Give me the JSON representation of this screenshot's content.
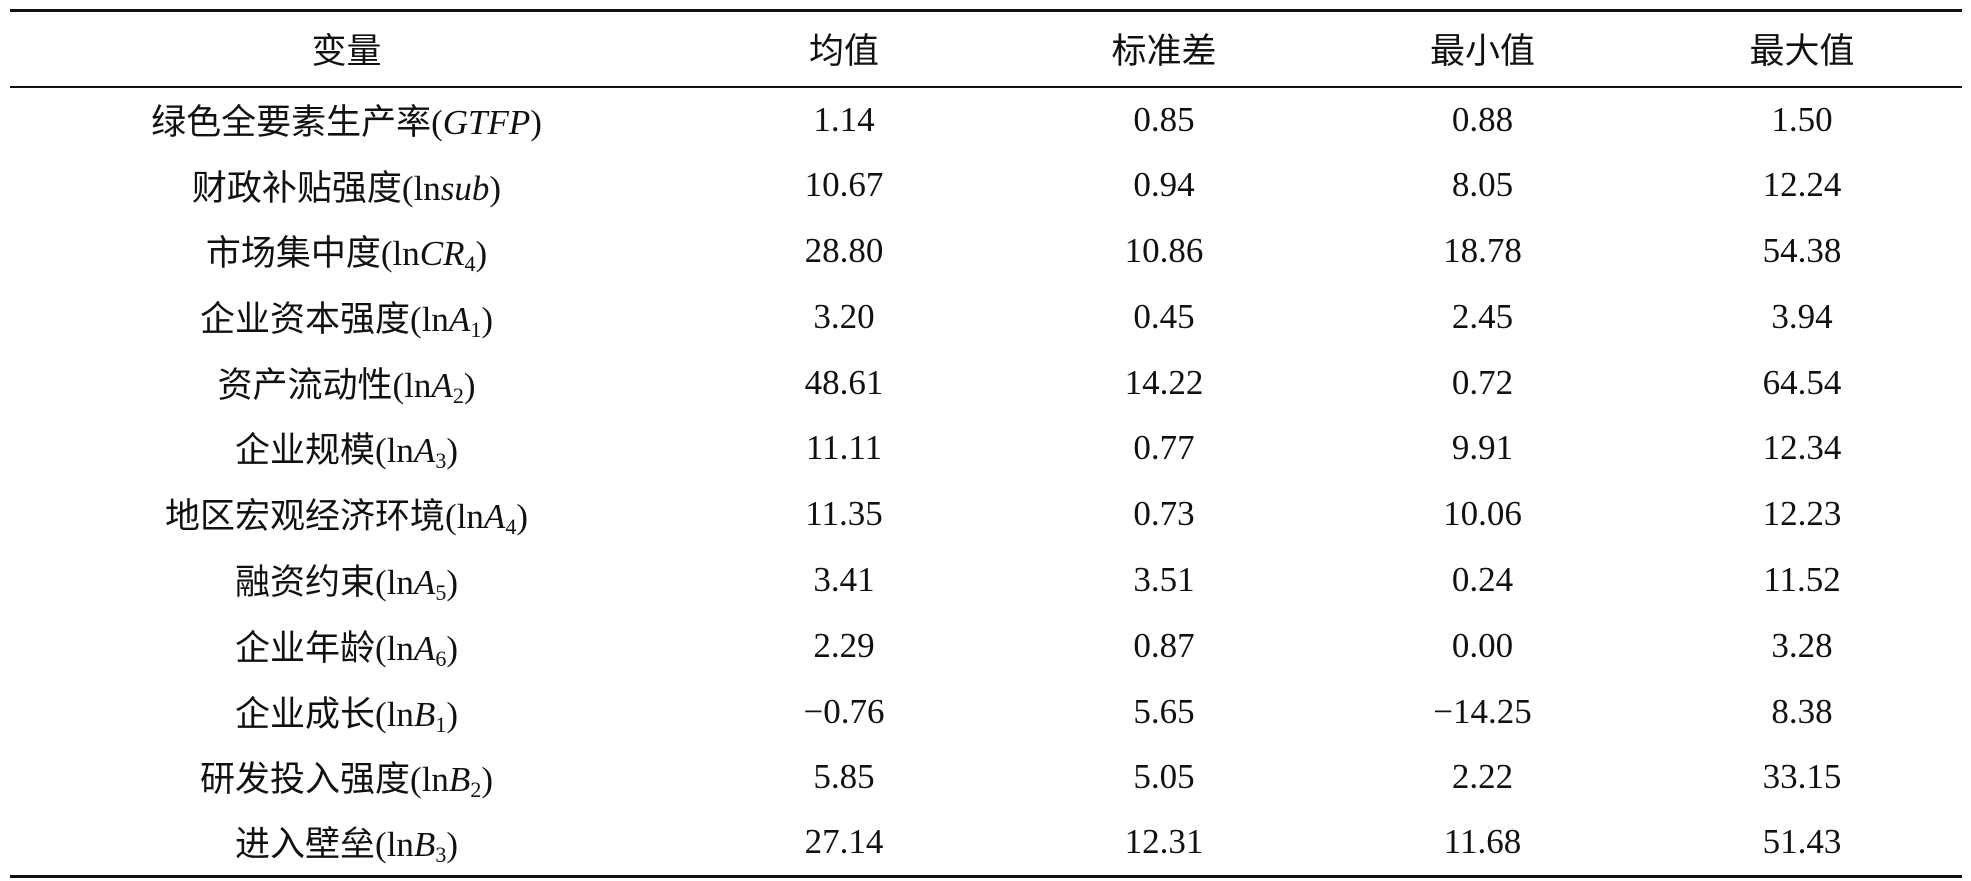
{
  "table": {
    "header": [
      "变量",
      "均值",
      "标准差",
      "最小值",
      "最大值"
    ],
    "rows": [
      [
        {
          "name": "绿色全要素生产率(",
          "symbol": "GTFP",
          "close": ")"
        },
        "1.14",
        "0.85",
        "0.88",
        "1.50"
      ],
      [
        {
          "name": "财政补贴强度(",
          "prefix": "ln",
          "symbol": "sub",
          "close": ")"
        },
        "10.67",
        "0.94",
        "8.05",
        "12.24"
      ],
      [
        {
          "name": "市场集中度(",
          "prefix": "ln",
          "symbol": "CR",
          "subscript": "4",
          "close": ")"
        },
        "28.80",
        "10.86",
        "18.78",
        "54.38"
      ],
      [
        {
          "name": "企业资本强度(",
          "prefix": "ln",
          "symbol": "A",
          "subscript": "1",
          "close": ")"
        },
        "3.20",
        "0.45",
        "2.45",
        "3.94"
      ],
      [
        {
          "name": "资产流动性(",
          "prefix": "ln",
          "symbol": "A",
          "subscript": "2",
          "close": ")"
        },
        "48.61",
        "14.22",
        "0.72",
        "64.54"
      ],
      [
        {
          "name": "企业规模(",
          "prefix": "ln",
          "symbol": "A",
          "subscript": "3",
          "close": ")"
        },
        "11.11",
        "0.77",
        "9.91",
        "12.34"
      ],
      [
        {
          "name": "地区宏观经济环境(",
          "prefix": "ln",
          "symbol": "A",
          "subscript": "4",
          "close": ")"
        },
        "11.35",
        "0.73",
        "10.06",
        "12.23"
      ],
      [
        {
          "name": "融资约束(",
          "prefix": "ln",
          "symbol": "A",
          "subscript": "5",
          "close": ")"
        },
        "3.41",
        "3.51",
        "0.24",
        "11.52"
      ],
      [
        {
          "name": "企业年龄(",
          "prefix": "ln",
          "symbol": "A",
          "subscript": "6",
          "close": ")"
        },
        "2.29",
        "0.87",
        "0.00",
        "3.28"
      ],
      [
        {
          "name": "企业成长(",
          "prefix": "ln",
          "symbol": "B",
          "subscript": "1",
          "close": ")"
        },
        "−0.76",
        "5.65",
        "−14.25",
        "8.38"
      ],
      [
        {
          "name": "研发投入强度(",
          "prefix": "ln",
          "symbol": "B",
          "subscript": "2",
          "close": ")"
        },
        "5.85",
        "5.05",
        "2.22",
        "33.15"
      ],
      [
        {
          "name": "进入壁垒(",
          "prefix": "ln",
          "symbol": "B",
          "subscript": "3",
          "close": ")"
        },
        "27.14",
        "12.31",
        "11.68",
        "51.43"
      ]
    ]
  }
}
